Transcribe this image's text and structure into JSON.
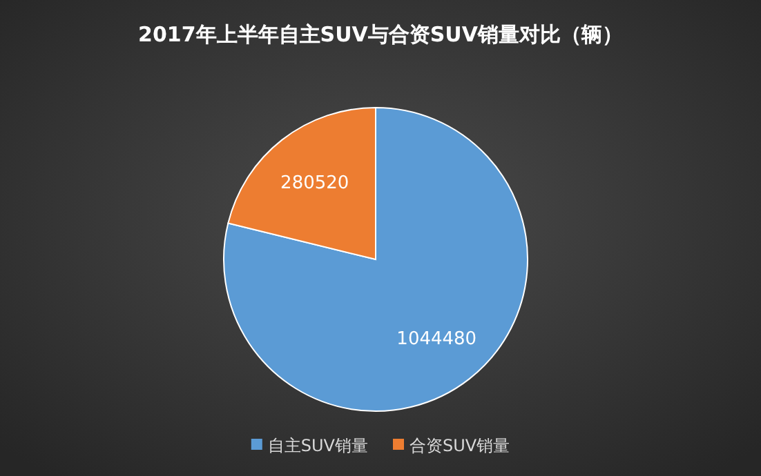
{
  "chart_data": {
    "type": "pie",
    "title": "2017年上半年自主SUV与合资SUV销量对比（辆）",
    "categories": [
      "自主SUV销量",
      "合资SUV销量"
    ],
    "values": [
      1044480,
      280520
    ],
    "colors": [
      "#5b9bd5",
      "#ed7d31"
    ],
    "data_labels": true,
    "legend": "bottom"
  }
}
